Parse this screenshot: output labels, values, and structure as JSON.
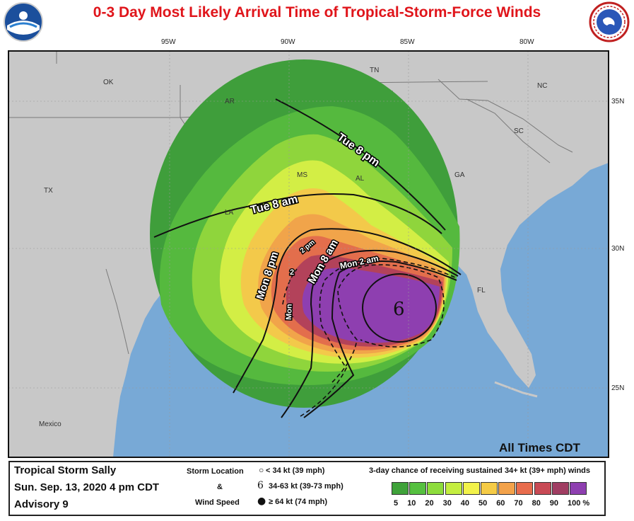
{
  "title": "0-3 Day Most Likely Arrival Time of Tropical-Storm-Force Winds",
  "logos": {
    "left": "NOAA",
    "right": "NATIONAL WEATHER SERVICE"
  },
  "longitudes": [
    "95W",
    "90W",
    "85W",
    "80W"
  ],
  "latitudes": [
    "35N",
    "30N",
    "25N"
  ],
  "region_labels": {
    "ok": "OK",
    "ar": "AR",
    "tn": "TN",
    "nc": "NC",
    "sc": "SC",
    "ga": "GA",
    "al": "AL",
    "ms": "MS",
    "la": "LA",
    "tx": "TX",
    "fl": "FL",
    "mexico": "Mexico"
  },
  "arrival_lines": {
    "tue_8pm": "Tue 8 pm",
    "tue_8am": "Tue 8 am",
    "mon_8pm": "Mon 8 pm",
    "mon_2pm": "2 pm",
    "mon_8am": "Mon 8 am",
    "mon_2am": "Mon 2 am",
    "mon_small": "Mon",
    "small_2": "2"
  },
  "times_note": "All Times CDT",
  "storm_symbol": "6",
  "legend": {
    "storm_name": "Tropical Storm Sally",
    "datetime": "Sun. Sep. 13, 2020  4 pm CDT",
    "advisory": "Advisory 9",
    "storm_location": "Storm Location",
    "amp": "&",
    "wind_speed": "Wind Speed",
    "sym1": "< 34 kt (39 mph)",
    "sym2": "34-63 kt (39-73 mph)",
    "sym3": "≥ 64 kt (74 mph)",
    "chance_title": "3-day chance of receiving sustained 34+ kt (39+ mph) winds",
    "scale_labels": [
      "5",
      "10",
      "20",
      "30",
      "40",
      "50",
      "60",
      "70",
      "80",
      "90",
      "100 %"
    ],
    "scale_colors": [
      "#3fa23a",
      "#55c03f",
      "#8ddc3c",
      "#c4ee40",
      "#f2f24a",
      "#f5cb46",
      "#f3a24a",
      "#e86c4d",
      "#c84a55",
      "#a03d62",
      "#8e3fb0"
    ]
  }
}
